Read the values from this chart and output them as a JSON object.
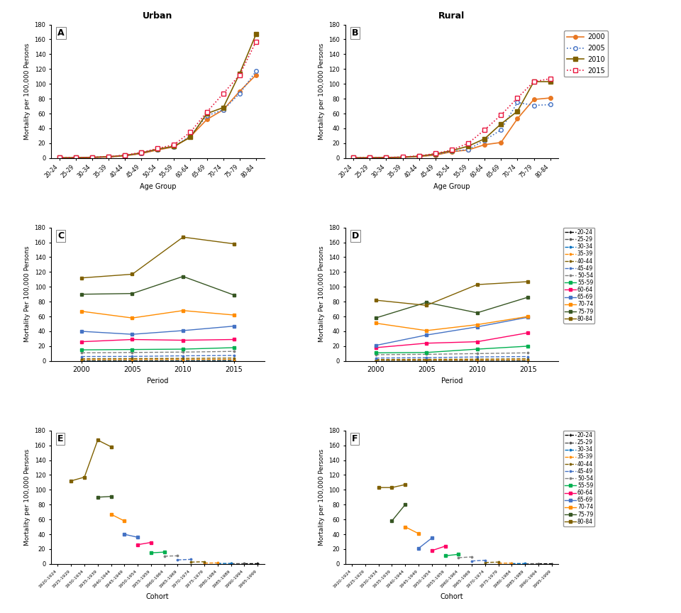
{
  "age_groups": [
    "20-24",
    "25-29",
    "30-34",
    "35-39",
    "40-44",
    "45-49",
    "50-54",
    "55-59",
    "60-64",
    "65-69",
    "70-74",
    "75-79",
    "80-84"
  ],
  "periods": [
    2000,
    2005,
    2010,
    2015
  ],
  "urban_by_year": {
    "2000": [
      0.3,
      0.4,
      0.8,
      1.5,
      3.0,
      6.0,
      11.0,
      15.0,
      29.0,
      52.0,
      65.0,
      90.0,
      112.0
    ],
    "2005": [
      0.3,
      0.5,
      0.9,
      1.6,
      3.2,
      6.2,
      11.5,
      15.5,
      30.0,
      57.0,
      65.0,
      87.0,
      117.0
    ],
    "2010": [
      0.3,
      0.5,
      1.0,
      1.8,
      3.5,
      7.0,
      12.0,
      16.0,
      28.0,
      60.0,
      68.0,
      114.0,
      167.0
    ],
    "2015": [
      0.4,
      0.6,
      1.0,
      1.9,
      4.0,
      7.5,
      13.0,
      18.0,
      35.0,
      62.0,
      87.0,
      112.0,
      157.0
    ]
  },
  "rural_by_year": {
    "2000": [
      0.2,
      0.3,
      0.5,
      1.0,
      2.0,
      4.0,
      8.5,
      11.0,
      18.0,
      21.0,
      53.0,
      79.0,
      81.0
    ],
    "2005": [
      0.2,
      0.3,
      0.6,
      1.1,
      2.2,
      4.5,
      9.0,
      11.5,
      24.0,
      38.0,
      75.0,
      71.0,
      72.0
    ],
    "2010": [
      0.3,
      0.4,
      0.7,
      1.2,
      2.5,
      5.5,
      10.0,
      16.0,
      26.0,
      46.0,
      63.0,
      103.0,
      103.0
    ],
    "2015": [
      0.3,
      0.4,
      0.8,
      1.4,
      3.0,
      6.0,
      11.0,
      20.0,
      38.0,
      58.0,
      81.0,
      103.0,
      107.0
    ]
  },
  "year_styles": {
    "2000": {
      "color": "#E87722",
      "ls": "-",
      "marker": "o",
      "mfc": "#E87722"
    },
    "2005": {
      "color": "#4472C4",
      "ls": ":",
      "marker": "o",
      "mfc": "white"
    },
    "2010": {
      "color": "#7F6000",
      "ls": "-",
      "marker": "s",
      "mfc": "#7F6000"
    },
    "2015": {
      "color": "#E8143C",
      "ls": ":",
      "marker": "s",
      "mfc": "white"
    }
  },
  "ag_colors": [
    "#000000",
    "#555555",
    "#0070C0",
    "#FF8C00",
    "#7F6000",
    "#4472C4",
    "#808080",
    "#00B050",
    "#FF0066",
    "#0070C0",
    "#FF8C00",
    "#375623",
    "#7F6000"
  ],
  "ag_ls": [
    "--",
    "--",
    "--",
    "--",
    "--",
    "--",
    "--",
    "-",
    "-",
    "-",
    "-",
    "-",
    "-"
  ],
  "ag_markers": [
    "+",
    ".",
    ".",
    ".",
    ".",
    ".",
    ".",
    "s",
    "s",
    "s",
    "s",
    "s",
    "s"
  ],
  "urban_period_data": {
    "20-24": [
      0.3,
      0.3,
      0.3,
      0.4
    ],
    "25-29": [
      0.5,
      0.5,
      0.5,
      0.6
    ],
    "30-34": [
      0.8,
      0.9,
      1.0,
      1.0
    ],
    "35-39": [
      1.5,
      1.6,
      1.8,
      1.9
    ],
    "40-44": [
      3.0,
      3.2,
      3.5,
      4.0
    ],
    "45-49": [
      6.0,
      6.2,
      7.0,
      7.5
    ],
    "50-54": [
      11.0,
      11.5,
      12.0,
      13.0
    ],
    "55-59": [
      15.0,
      15.5,
      16.0,
      18.0
    ],
    "60-64": [
      26.0,
      29.0,
      28.0,
      29.0
    ],
    "65-69": [
      40.0,
      36.0,
      41.0,
      47.0
    ],
    "70-74": [
      67.0,
      58.0,
      68.0,
      62.0
    ],
    "75-79": [
      90.0,
      91.0,
      114.0,
      89.0
    ],
    "80-84": [
      112.0,
      117.0,
      167.0,
      158.0
    ]
  },
  "rural_period_data": {
    "20-24": [
      0.2,
      0.2,
      0.3,
      0.3
    ],
    "25-29": [
      0.3,
      0.3,
      0.4,
      0.4
    ],
    "30-34": [
      0.5,
      0.6,
      0.7,
      0.8
    ],
    "35-39": [
      1.0,
      1.1,
      1.2,
      1.4
    ],
    "40-44": [
      2.0,
      2.2,
      2.5,
      3.0
    ],
    "45-49": [
      4.0,
      4.5,
      5.5,
      6.0
    ],
    "50-54": [
      8.5,
      9.0,
      10.0,
      11.0
    ],
    "55-59": [
      11.0,
      11.5,
      16.0,
      20.0
    ],
    "60-64": [
      18.0,
      24.0,
      26.0,
      38.0
    ],
    "65-69": [
      21.0,
      35.0,
      46.0,
      59.0
    ],
    "70-74": [
      51.0,
      41.0,
      49.0,
      60.0
    ],
    "75-79": [
      58.0,
      79.0,
      65.0,
      86.0
    ],
    "80-84": [
      82.0,
      75.0,
      103.0,
      107.0
    ]
  },
  "urban_cohort_cohorts": [
    "1920-1924",
    "1925-1929",
    "1930-1934",
    "1935-1939",
    "1940-1944",
    "1945-1949",
    "1950-1954",
    "1955-1959",
    "1960-1964",
    "1965-1969",
    "1970-1974",
    "1975-1979",
    "1980-1984",
    "1985-1989",
    "1990-1994",
    "1995-1999"
  ],
  "urban_cohort": {
    "20-24": [
      null,
      null,
      null,
      null,
      null,
      null,
      null,
      null,
      null,
      null,
      null,
      null,
      null,
      null,
      0.35,
      0.4
    ],
    "25-29": [
      null,
      null,
      null,
      null,
      null,
      null,
      null,
      null,
      null,
      null,
      null,
      null,
      null,
      0.4,
      0.45,
      null
    ],
    "30-34": [
      null,
      null,
      null,
      null,
      null,
      null,
      null,
      null,
      null,
      null,
      null,
      null,
      0.65,
      0.75,
      null,
      null
    ],
    "35-39": [
      null,
      null,
      null,
      null,
      null,
      null,
      null,
      null,
      null,
      null,
      null,
      1.2,
      1.4,
      null,
      null,
      null
    ],
    "40-44": [
      null,
      null,
      null,
      null,
      null,
      null,
      null,
      null,
      null,
      null,
      2.5,
      3.0,
      null,
      null,
      null,
      null
    ],
    "45-49": [
      null,
      null,
      null,
      null,
      null,
      null,
      null,
      null,
      null,
      5.5,
      6.2,
      null,
      null,
      null,
      null,
      null
    ],
    "50-54": [
      null,
      null,
      null,
      null,
      null,
      null,
      null,
      null,
      10.5,
      11.0,
      null,
      null,
      null,
      null,
      null,
      null
    ],
    "55-59": [
      null,
      null,
      null,
      null,
      null,
      null,
      null,
      15.0,
      16.0,
      null,
      null,
      null,
      null,
      null,
      null,
      null
    ],
    "60-64": [
      null,
      null,
      null,
      null,
      null,
      null,
      26.0,
      29.0,
      null,
      null,
      null,
      null,
      null,
      null,
      null,
      null
    ],
    "65-69": [
      null,
      null,
      null,
      null,
      null,
      40.0,
      36.0,
      null,
      null,
      null,
      null,
      null,
      null,
      null,
      null,
      null
    ],
    "70-74": [
      null,
      null,
      null,
      null,
      67.0,
      58.0,
      null,
      null,
      null,
      null,
      null,
      null,
      null,
      null,
      null,
      null
    ],
    "75-79": [
      null,
      null,
      null,
      90.0,
      91.0,
      null,
      null,
      null,
      null,
      null,
      null,
      null,
      null,
      null,
      null,
      null
    ],
    "80-84": [
      null,
      112.0,
      117.0,
      167.0,
      158.0,
      null,
      null,
      null,
      null,
      null,
      null,
      null,
      null,
      null,
      null,
      null
    ]
  },
  "rural_cohort_cohorts": [
    "1920-1924",
    "1925-1929",
    "1930-1934",
    "1935-1939",
    "1940-1944",
    "1945-1949",
    "1950-1954",
    "1955-1959",
    "1960-1964",
    "1965-1969",
    "1970-1974",
    "1975-1979",
    "1980-1984",
    "1985-1989",
    "1990-1994",
    "1995-1999"
  ],
  "rural_cohort": {
    "20-24": [
      null,
      null,
      null,
      null,
      null,
      null,
      null,
      null,
      null,
      null,
      null,
      null,
      null,
      null,
      0.25,
      0.3
    ],
    "25-29": [
      null,
      null,
      null,
      null,
      null,
      null,
      null,
      null,
      null,
      null,
      null,
      null,
      null,
      0.3,
      0.35,
      null
    ],
    "30-34": [
      null,
      null,
      null,
      null,
      null,
      null,
      null,
      null,
      null,
      null,
      null,
      null,
      0.5,
      0.6,
      null,
      null
    ],
    "35-39": [
      null,
      null,
      null,
      null,
      null,
      null,
      null,
      null,
      null,
      null,
      null,
      1.0,
      1.2,
      null,
      null,
      null
    ],
    "40-44": [
      null,
      null,
      null,
      null,
      null,
      null,
      null,
      null,
      null,
      null,
      2.0,
      2.5,
      null,
      null,
      null,
      null
    ],
    "45-49": [
      null,
      null,
      null,
      null,
      null,
      null,
      null,
      null,
      null,
      4.0,
      5.0,
      null,
      null,
      null,
      null,
      null
    ],
    "50-54": [
      null,
      null,
      null,
      null,
      null,
      null,
      null,
      null,
      8.5,
      9.5,
      null,
      null,
      null,
      null,
      null,
      null
    ],
    "55-59": [
      null,
      null,
      null,
      null,
      null,
      null,
      null,
      11.0,
      13.0,
      null,
      null,
      null,
      null,
      null,
      null,
      null
    ],
    "60-64": [
      null,
      null,
      null,
      null,
      null,
      null,
      18.0,
      24.0,
      null,
      null,
      null,
      null,
      null,
      null,
      null,
      null
    ],
    "65-69": [
      null,
      null,
      null,
      null,
      null,
      21.0,
      35.0,
      null,
      null,
      null,
      null,
      null,
      null,
      null,
      null,
      null
    ],
    "70-74": [
      null,
      null,
      null,
      null,
      50.0,
      41.0,
      null,
      null,
      null,
      null,
      null,
      null,
      null,
      null,
      null,
      null
    ],
    "75-79": [
      null,
      null,
      null,
      58.0,
      80.0,
      null,
      null,
      null,
      null,
      null,
      null,
      null,
      null,
      null,
      null,
      null
    ],
    "80-84": [
      null,
      null,
      103.0,
      103.0,
      107.0,
      null,
      null,
      null,
      null,
      null,
      null,
      null,
      null,
      null,
      null,
      null
    ]
  }
}
